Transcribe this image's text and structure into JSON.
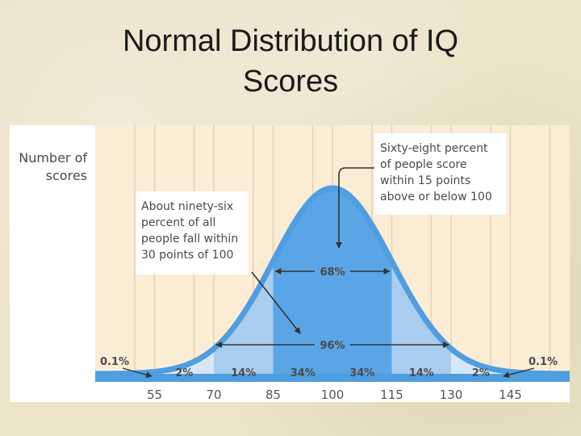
{
  "slide": {
    "title_line1": "Normal Distribution of IQ",
    "title_line2": "Scores"
  },
  "colors": {
    "panel": "#fbecd6",
    "grid": "#e2d2b8",
    "curve": "#4f9ee0",
    "fill_outer": "#d6e8f8",
    "fill_mid": "#a9cdee",
    "fill_inner": "#5aa5e6",
    "text": "#4a4a4a",
    "axis_text": "#555555"
  },
  "chart_data": {
    "type": "area",
    "title": "",
    "ylabel_lines": [
      "Number of",
      "scores"
    ],
    "xlabel": "",
    "ticks": [
      55,
      70,
      85,
      100,
      115,
      130,
      145
    ],
    "xlim": [
      40,
      160
    ],
    "mean": 100,
    "sd": 15,
    "band_labels": [
      {
        "from": 55,
        "to": 70,
        "label": "2%"
      },
      {
        "from": 70,
        "to": 85,
        "label": "14%"
      },
      {
        "from": 85,
        "to": 100,
        "label": "34%"
      },
      {
        "from": 100,
        "to": 115,
        "label": "34%"
      },
      {
        "from": 115,
        "to": 130,
        "label": "14%"
      },
      {
        "from": 130,
        "to": 145,
        "label": "2%"
      }
    ],
    "tail_labels": {
      "left": "0.1%",
      "right": "0.1%"
    },
    "spans": [
      {
        "from": 85,
        "to": 115,
        "label": "68%"
      },
      {
        "from": 70,
        "to": 130,
        "label": "96%"
      }
    ],
    "annotations": {
      "left_box": [
        "About ninety-six",
        "percent of all",
        "people fall within",
        "30 points of 100"
      ],
      "right_box": [
        "Sixty-eight percent",
        "of people score",
        "within 15 points",
        "above or below 100"
      ]
    }
  }
}
